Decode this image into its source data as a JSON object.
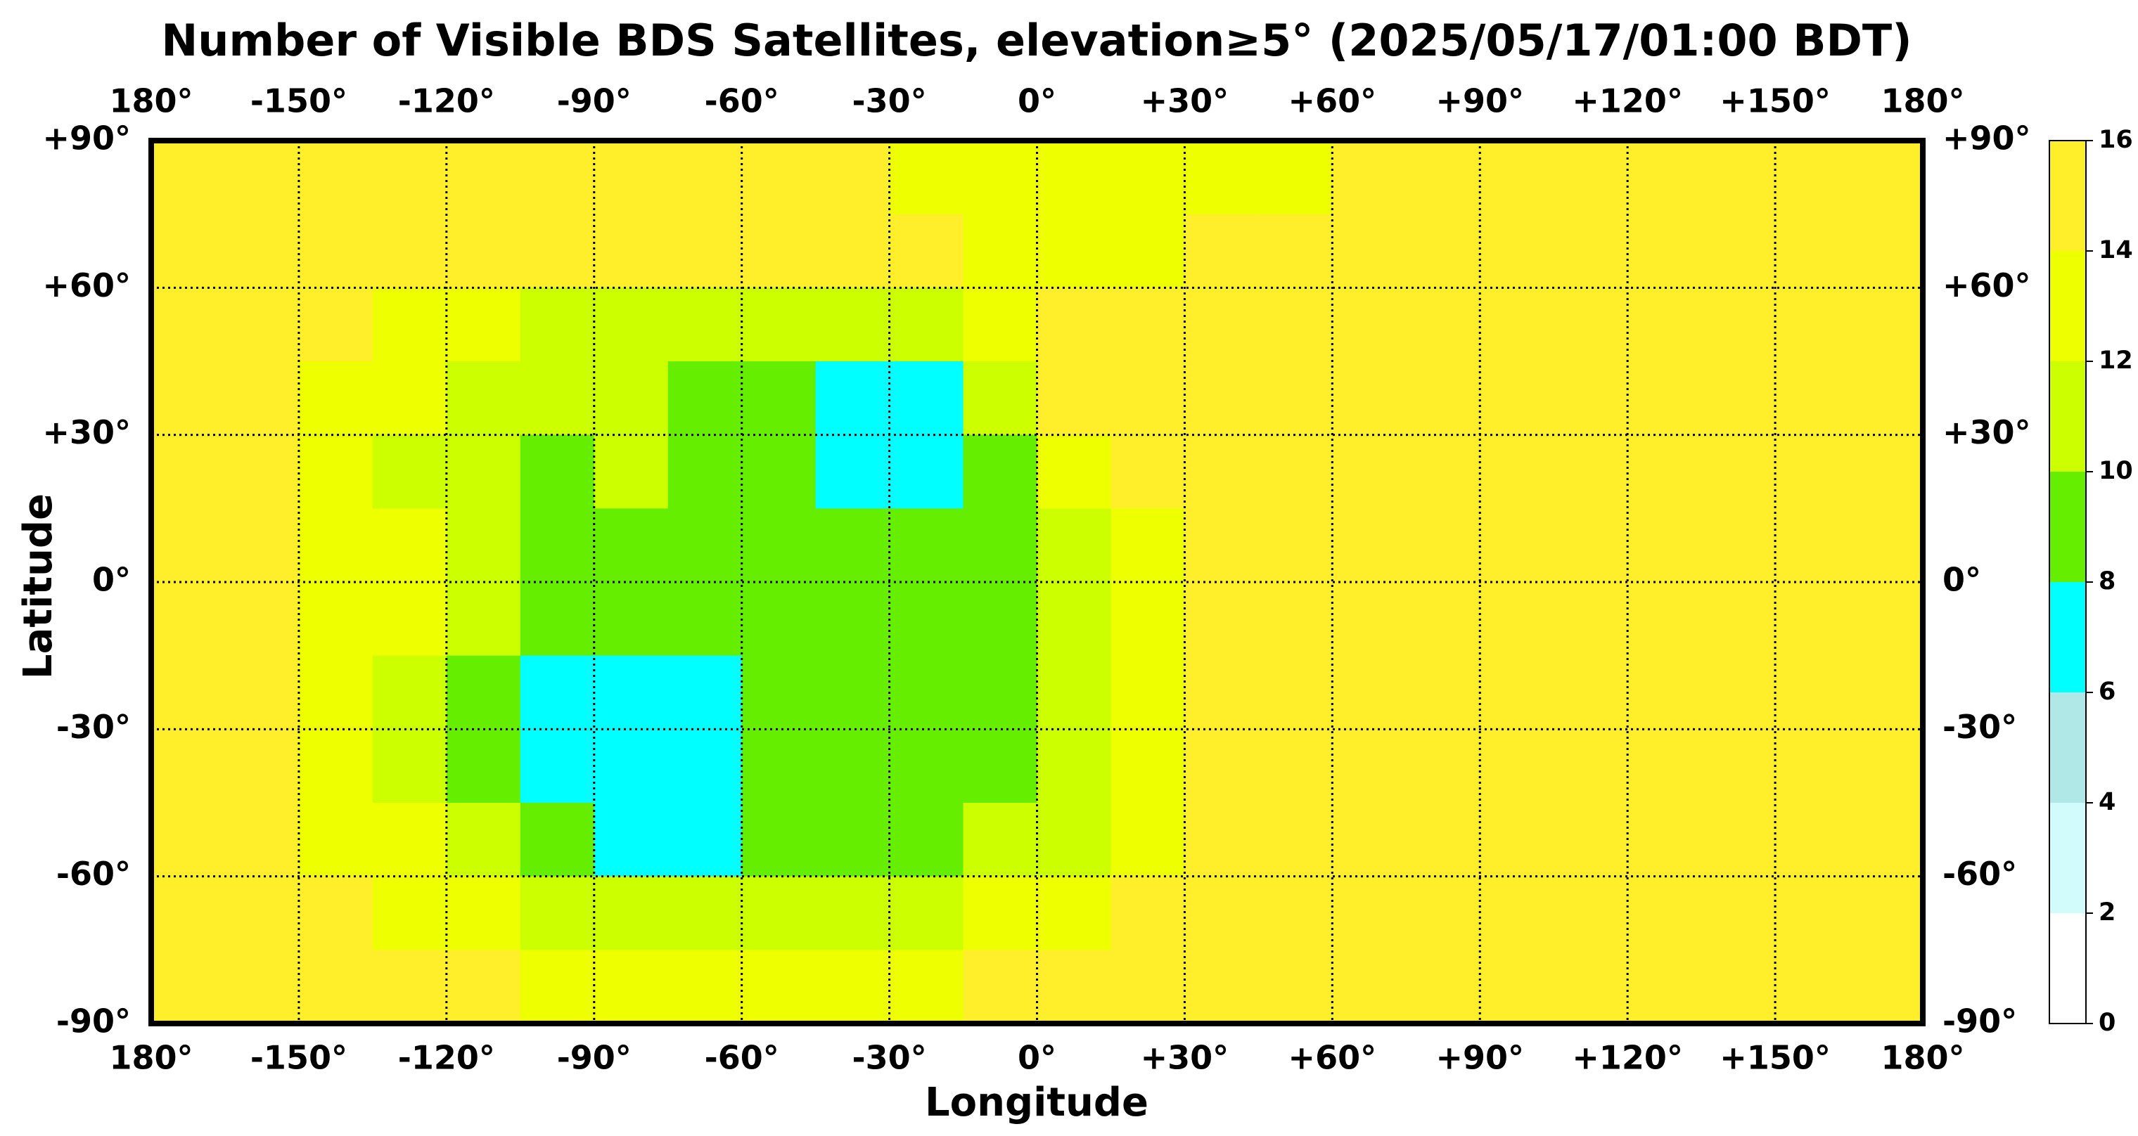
{
  "chart_data": {
    "type": "heatmap",
    "title": "Number of Visible BDS Satellites, elevation≥5° (2025/05/17/01:00 BDT)",
    "xlabel": "Longitude",
    "ylabel": "Latitude",
    "xlim": [
      -180,
      180
    ],
    "ylim": [
      -90,
      90
    ],
    "xticks": [
      {
        "value": -180,
        "label": "180°"
      },
      {
        "value": -150,
        "label": "-150°"
      },
      {
        "value": -120,
        "label": "-120°"
      },
      {
        "value": -90,
        "label": "-90°"
      },
      {
        "value": -60,
        "label": "-60°"
      },
      {
        "value": -30,
        "label": "-30°"
      },
      {
        "value": 0,
        "label": "0°"
      },
      {
        "value": 30,
        "label": "+30°"
      },
      {
        "value": 60,
        "label": "+60°"
      },
      {
        "value": 90,
        "label": "+90°"
      },
      {
        "value": 120,
        "label": "+120°"
      },
      {
        "value": 150,
        "label": "+150°"
      },
      {
        "value": 180,
        "label": "180°"
      }
    ],
    "yticks": [
      {
        "value": 90,
        "label": "+90°"
      },
      {
        "value": 60,
        "label": "+60°"
      },
      {
        "value": 30,
        "label": "+30°"
      },
      {
        "value": 0,
        "label": "0°"
      },
      {
        "value": -30,
        "label": "-30°"
      },
      {
        "value": -60,
        "label": "-60°"
      },
      {
        "value": -90,
        "label": "-90°"
      }
    ],
    "grid": true,
    "z": [
      [
        15,
        15,
        15,
        15,
        15,
        15,
        15,
        15,
        15,
        15,
        13,
        13,
        13,
        13,
        13,
        13,
        15,
        15,
        15,
        15,
        15,
        15,
        15,
        15
      ],
      [
        15,
        15,
        15,
        15,
        15,
        15,
        15,
        15,
        15,
        15,
        15,
        13,
        13,
        13,
        15,
        15,
        15,
        15,
        15,
        15,
        15,
        15,
        15,
        15
      ],
      [
        15,
        15,
        15,
        13,
        13,
        11,
        11,
        11,
        11,
        11,
        11,
        13,
        15,
        15,
        15,
        15,
        15,
        15,
        15,
        15,
        15,
        15,
        15,
        15
      ],
      [
        15,
        15,
        13,
        13,
        11,
        11,
        11,
        9,
        9,
        7,
        7,
        11,
        15,
        15,
        15,
        15,
        15,
        15,
        15,
        15,
        15,
        15,
        15,
        15
      ],
      [
        15,
        15,
        13,
        11,
        11,
        9,
        11,
        9,
        9,
        7,
        7,
        9,
        13,
        15,
        15,
        15,
        15,
        15,
        15,
        15,
        15,
        15,
        15,
        15
      ],
      [
        15,
        15,
        13,
        13,
        11,
        9,
        9,
        9,
        9,
        9,
        9,
        9,
        11,
        13,
        15,
        15,
        15,
        15,
        15,
        15,
        15,
        15,
        15,
        15
      ],
      [
        15,
        15,
        13,
        13,
        11,
        9,
        9,
        9,
        9,
        9,
        9,
        9,
        11,
        13,
        15,
        15,
        15,
        15,
        15,
        15,
        15,
        15,
        15,
        15
      ],
      [
        15,
        15,
        13,
        11,
        9,
        7,
        7,
        7,
        9,
        9,
        9,
        9,
        11,
        13,
        15,
        15,
        15,
        15,
        15,
        15,
        15,
        15,
        15,
        15
      ],
      [
        15,
        15,
        13,
        11,
        9,
        7,
        7,
        7,
        9,
        9,
        9,
        9,
        11,
        13,
        15,
        15,
        15,
        15,
        15,
        15,
        15,
        15,
        15,
        15
      ],
      [
        15,
        15,
        13,
        13,
        11,
        9,
        7,
        7,
        9,
        9,
        9,
        11,
        11,
        13,
        15,
        15,
        15,
        15,
        15,
        15,
        15,
        15,
        15,
        15
      ],
      [
        15,
        15,
        15,
        13,
        13,
        11,
        11,
        11,
        11,
        11,
        11,
        13,
        13,
        15,
        15,
        15,
        15,
        15,
        15,
        15,
        15,
        15,
        15,
        15
      ],
      [
        15,
        15,
        15,
        15,
        15,
        13,
        13,
        13,
        13,
        13,
        13,
        15,
        15,
        15,
        15,
        15,
        15,
        15,
        15,
        15,
        15,
        15,
        15,
        15
      ]
    ],
    "colorbar": {
      "ticks": [
        0,
        2,
        4,
        6,
        8,
        10,
        12,
        14,
        16
      ],
      "colors": [
        "#ffffff",
        "#d2fbfb",
        "#b0e8e8",
        "#00ffff",
        "#66ee00",
        "#ccff00",
        "#eeff00",
        "#ffef2a"
      ]
    }
  }
}
